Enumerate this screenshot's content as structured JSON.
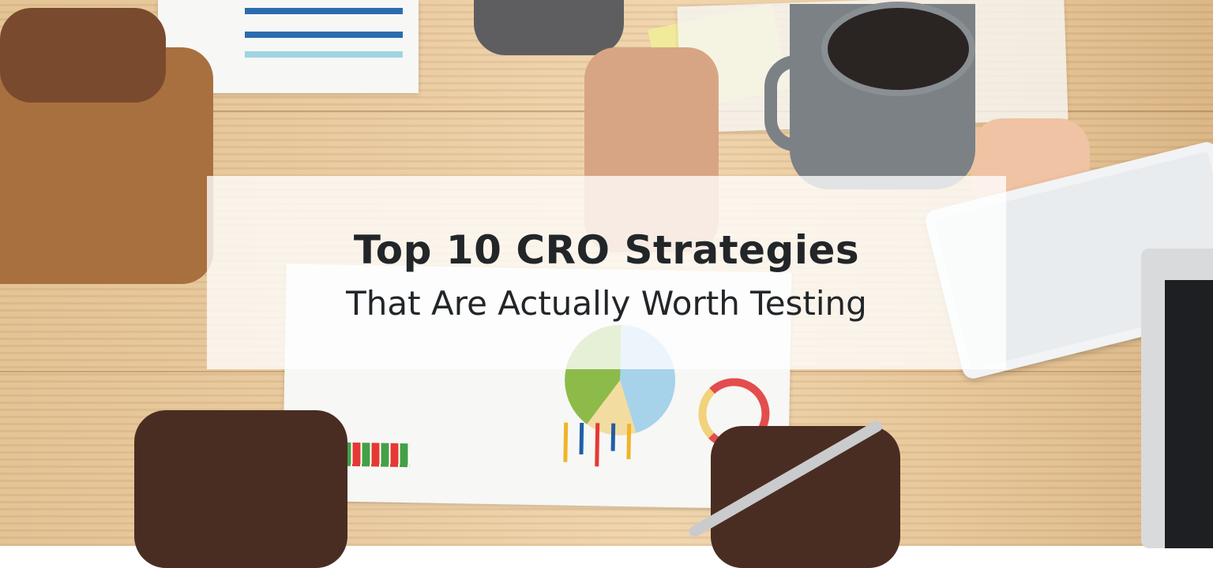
{
  "banner": {
    "title": "Top 10 CRO Strategies",
    "subtitle": "That Are Actually Worth Testing"
  },
  "colors": {
    "text": "#222629",
    "overlay": "#ffffff",
    "wood": "#e9caa0"
  }
}
